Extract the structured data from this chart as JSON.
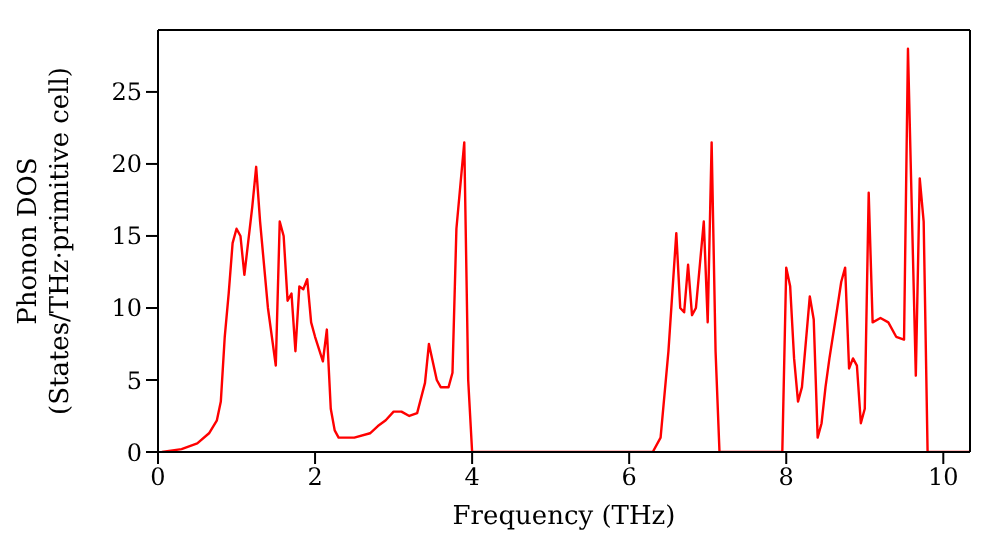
{
  "chart_data": {
    "type": "line",
    "xlabel": "Frequency (THz)",
    "ylabel": "Phonon DOS\n(States/THz·primitive cell)",
    "xlim": [
      0,
      10.34
    ],
    "xticks": [
      0,
      2,
      4,
      6,
      8,
      10
    ],
    "ylim": [
      0,
      29.3
    ],
    "yticks": [
      0,
      5,
      10,
      15,
      20,
      25
    ],
    "marker": "none",
    "line_style": "solid",
    "series": [
      {
        "color": "#ff0000",
        "x": [
          0.05,
          0.3,
          0.5,
          0.65,
          0.75,
          0.8,
          0.85,
          0.9,
          0.95,
          1.0,
          1.05,
          1.1,
          1.2,
          1.25,
          1.3,
          1.4,
          1.5,
          1.55,
          1.6,
          1.65,
          1.7,
          1.75,
          1.8,
          1.85,
          1.9,
          1.95,
          2.0,
          2.1,
          2.15,
          2.2,
          2.25,
          2.3,
          2.5,
          2.7,
          2.8,
          2.9,
          3.0,
          3.1,
          3.2,
          3.3,
          3.4,
          3.45,
          3.55,
          3.6,
          3.7,
          3.75,
          3.8,
          3.9,
          3.95,
          4.0,
          6.3,
          6.4,
          6.5,
          6.6,
          6.65,
          6.7,
          6.75,
          6.8,
          6.85,
          6.9,
          6.95,
          7.0,
          7.05,
          7.1,
          7.15,
          7.95,
          8.0,
          8.05,
          8.1,
          8.15,
          8.2,
          8.3,
          8.35,
          8.4,
          8.45,
          8.5,
          8.55,
          8.65,
          8.7,
          8.75,
          8.8,
          8.85,
          8.9,
          8.95,
          9.0,
          9.05,
          9.1,
          9.2,
          9.3,
          9.4,
          9.5,
          9.55,
          9.65,
          9.7,
          9.75,
          9.8,
          10.34
        ],
        "values": [
          0,
          0.2,
          0.6,
          1.3,
          2.2,
          3.5,
          8,
          11,
          14.5,
          15.5,
          15,
          12.3,
          17,
          19.8,
          16,
          10,
          6,
          16,
          15,
          10.5,
          11,
          7,
          11.5,
          11.3,
          12,
          9,
          8,
          6.3,
          8.5,
          3,
          1.5,
          1,
          1,
          1.3,
          1.8,
          2.2,
          2.8,
          2.8,
          2.5,
          2.7,
          4.8,
          7.5,
          5,
          4.5,
          4.5,
          5.5,
          15.5,
          21.5,
          5,
          0,
          0,
          1,
          7,
          15.2,
          10,
          9.7,
          13,
          9.5,
          10,
          13,
          16,
          9,
          21.5,
          7,
          0,
          0,
          12.8,
          11.5,
          6.5,
          3.5,
          4.5,
          10.8,
          9.2,
          1,
          2,
          4.5,
          6.5,
          10,
          11.8,
          12.8,
          5.8,
          6.5,
          6,
          2,
          3,
          18,
          9,
          9.3,
          9,
          8,
          7.8,
          28,
          5.3,
          19,
          16,
          0,
          0
        ]
      }
    ]
  }
}
